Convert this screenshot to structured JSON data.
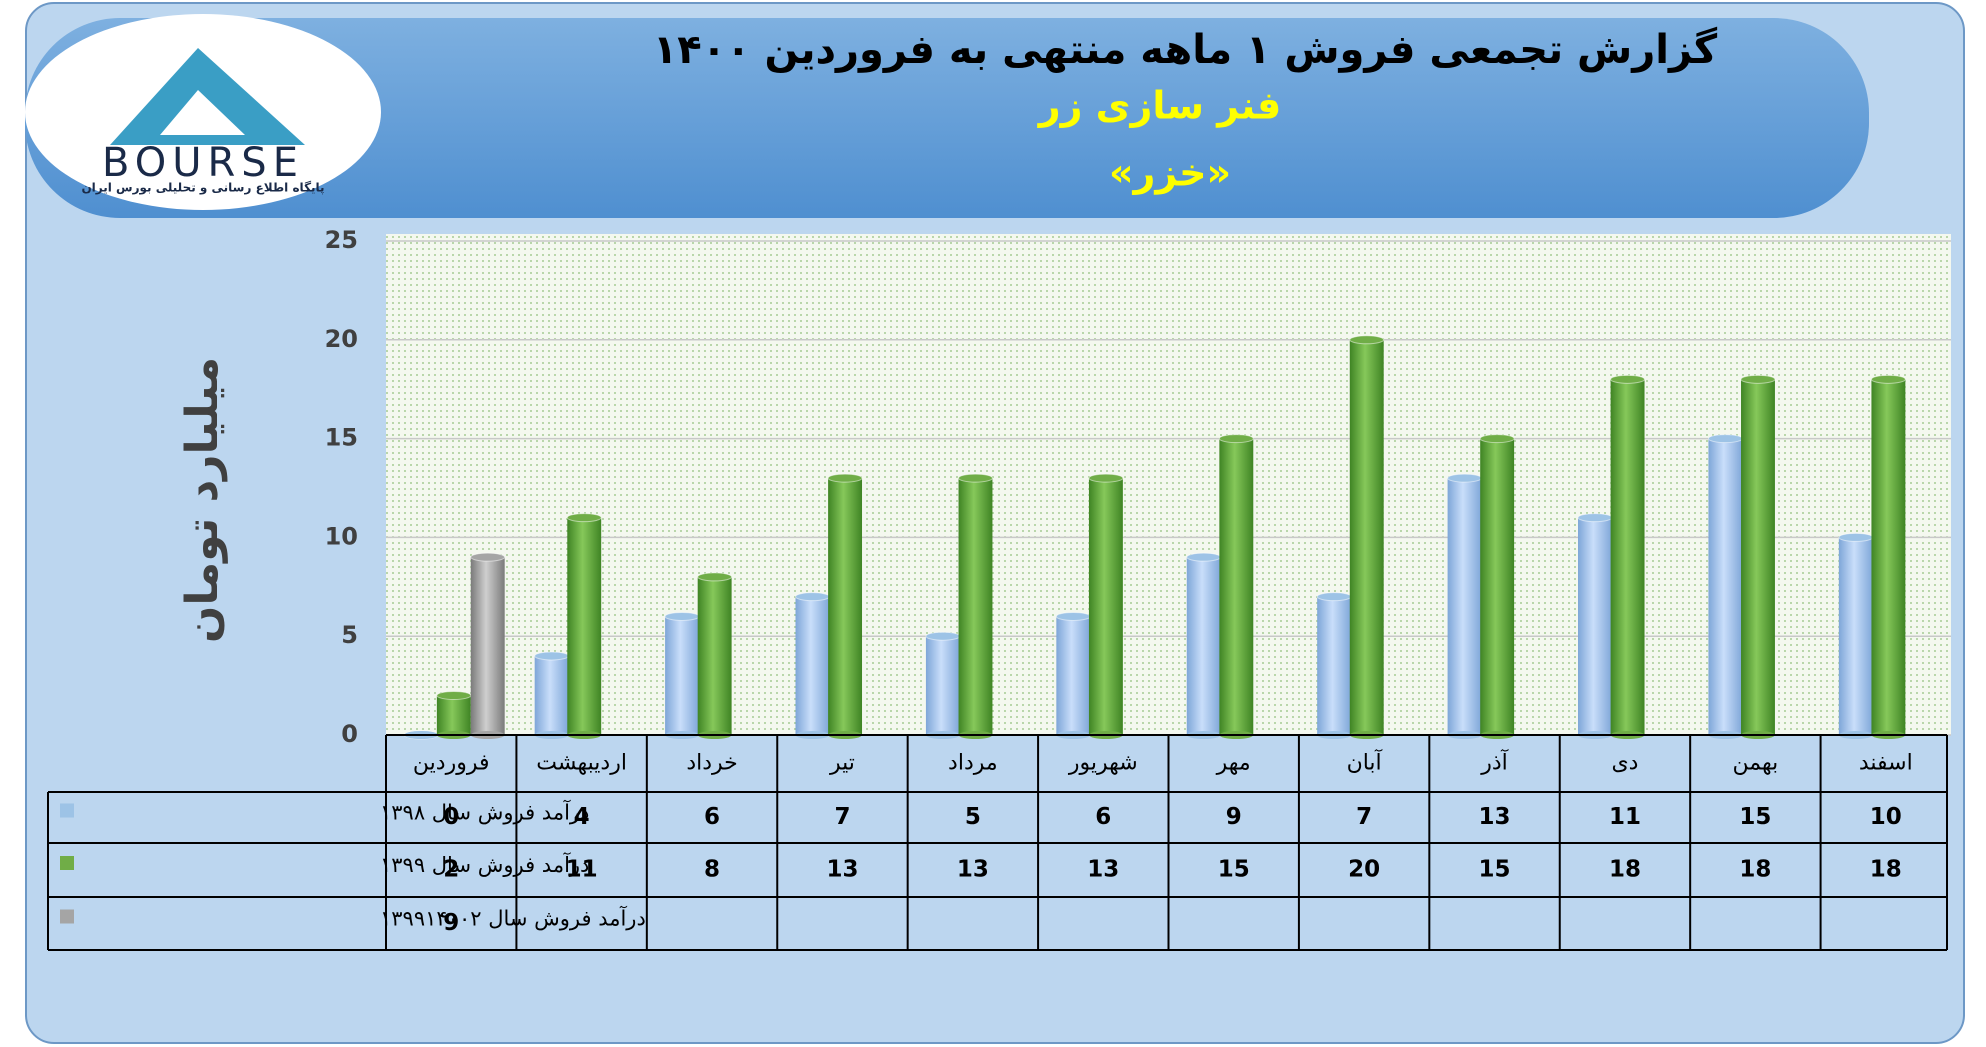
{
  "logo": {
    "name": "BOURSE",
    "caption": "پایگاه اطلاع رسانی و تحلیلی بورس ایران"
  },
  "chart_data": {
    "type": "bar",
    "title": "گزارش تجمعی فروش ۱ ماهه منتهی به فروردین ۱۴۰۰",
    "subtitle": "فنر سازی زر",
    "symbol": "«خزر»",
    "y_label": "میلیارد تومان",
    "categories": [
      "فروردین",
      "اردیبهشت",
      "خرداد",
      "تیر",
      "مرداد",
      "شهریور",
      "مهر",
      "آبان",
      "آذر",
      "دی",
      "بهمن",
      "اسفند"
    ],
    "series": [
      {
        "name": "درآمد فروش سال ۱۳۹۸",
        "color": "#9dc3e6",
        "values": [
          0,
          4,
          6,
          7,
          5,
          6,
          9,
          7,
          13,
          11,
          15,
          10
        ]
      },
      {
        "name": "درآمد فروش سال ۱۳۹۹",
        "color": "#70ad47",
        "values": [
          2,
          11,
          8,
          13,
          13,
          13,
          15,
          20,
          15,
          18,
          18,
          18
        ]
      },
      {
        "name": "درآمد فروش سال ۱۳۹۹۱۴۰۰۲",
        "color": "#a5a5a5",
        "values": [
          9,
          null,
          null,
          null,
          null,
          null,
          null,
          null,
          null,
          null,
          null,
          null
        ]
      }
    ],
    "ylim": [
      0,
      25
    ],
    "yticks": [
      0,
      5,
      10,
      15,
      20,
      25
    ],
    "grid": true
  }
}
